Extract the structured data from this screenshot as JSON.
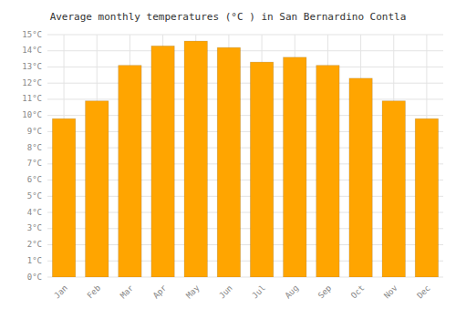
{
  "chart_data": {
    "type": "bar",
    "title": "Average monthly temperatures (°C ) in San Bernardino Contla",
    "categories": [
      "Jan",
      "Feb",
      "Mar",
      "Apr",
      "May",
      "Jun",
      "Jul",
      "Aug",
      "Sep",
      "Oct",
      "Nov",
      "Dec"
    ],
    "values": [
      9.8,
      10.9,
      13.1,
      14.3,
      14.6,
      14.2,
      13.3,
      13.6,
      13.1,
      12.3,
      10.9,
      9.8
    ],
    "color": "#FFA500",
    "ylim": [
      0,
      15
    ],
    "yticks": [
      {
        "value": 0,
        "label": "0°C"
      },
      {
        "value": 1,
        "label": "1°C"
      },
      {
        "value": 2,
        "label": "2°C"
      },
      {
        "value": 3,
        "label": "3°C"
      },
      {
        "value": 4,
        "label": "4°C"
      },
      {
        "value": 5,
        "label": "5°C"
      },
      {
        "value": 6,
        "label": "6°C"
      },
      {
        "value": 7,
        "label": "7°C"
      },
      {
        "value": 8,
        "label": "8°C"
      },
      {
        "value": 9,
        "label": "9°C"
      },
      {
        "value": 10,
        "label": "10°C"
      },
      {
        "value": 11,
        "label": "11°C"
      },
      {
        "value": 12,
        "label": "12°C"
      },
      {
        "value": 13,
        "label": "13°C"
      },
      {
        "value": 14,
        "label": "14°C"
      },
      {
        "value": 15,
        "label": "15°C"
      }
    ],
    "grid": true
  }
}
